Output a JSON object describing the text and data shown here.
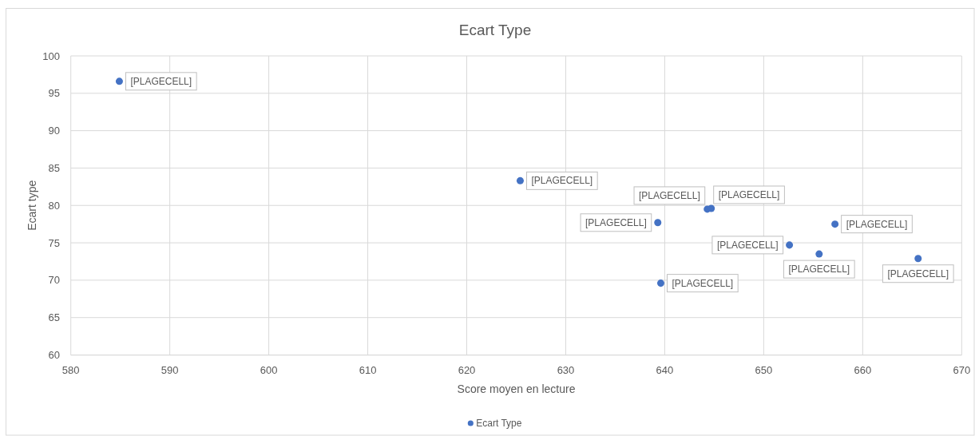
{
  "chart_data": {
    "type": "scatter",
    "title": "Ecart Type",
    "xlabel": "Score moyen en lecture",
    "ylabel": "Ecart type",
    "x": [
      584.9,
      625.4,
      639.3,
      639.6,
      644.3,
      644.7,
      652.6,
      655.6,
      657.2,
      665.6
    ],
    "series": [
      {
        "name": "Ecart Type",
        "color": "#4472c4",
        "values": [
          96.6,
          83.3,
          77.7,
          69.6,
          79.5,
          79.6,
          74.7,
          73.5,
          77.5,
          72.9
        ],
        "value_labels": [
          "[PLAGECELL]",
          "[PLAGECELL]",
          "[PLAGECELL]",
          "[PLAGECELL]",
          "[PLAGECELL]",
          "[PLAGECELL]",
          "[PLAGECELL]",
          "[PLAGECELL]",
          "[PLAGECELL]",
          "[PLAGECELL]"
        ]
      }
    ],
    "xlim": [
      580,
      670
    ],
    "xticks": [
      580,
      590,
      600,
      610,
      620,
      630,
      640,
      650,
      660,
      670
    ],
    "ylim": [
      60,
      100
    ],
    "yticks": [
      60,
      65,
      70,
      75,
      80,
      85,
      90,
      95,
      100
    ],
    "grid": true,
    "legend": "bottom",
    "marker": "circle"
  }
}
